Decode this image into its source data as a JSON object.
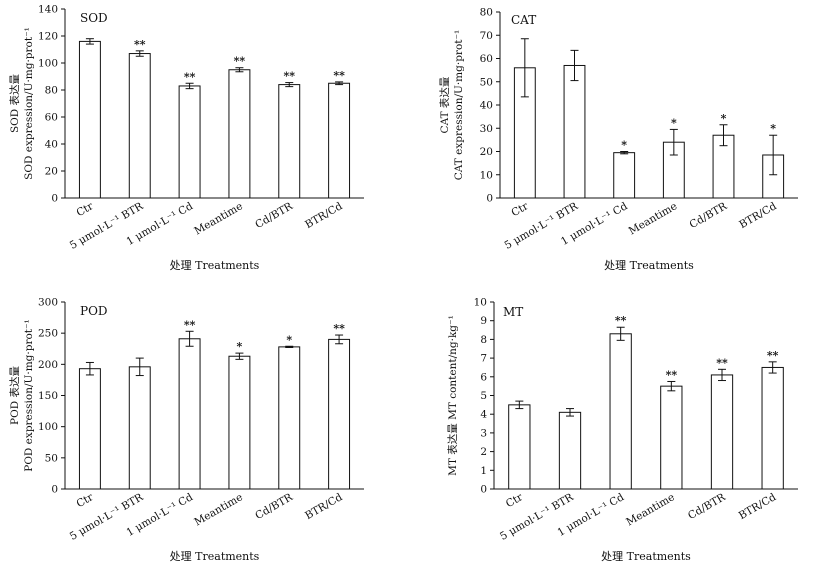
{
  "figure": {
    "categories": [
      "Ctr",
      "5 μmol·L⁻¹ BTR",
      "1 μmol·L⁻¹ Cd",
      "Meantime",
      "Cd/BTR",
      "BTR/Cd"
    ],
    "xlabel": "处理 Treatments"
  },
  "chart_data": [
    {
      "id": "sod",
      "type": "bar",
      "title": "SOD",
      "ylabel_lines": [
        "SOD 表达量",
        "SOD expression/U·mg·prot⁻¹"
      ],
      "xlabel": "处理 Treatments",
      "categories": [
        "Ctr",
        "5 μmol·L⁻¹ BTR",
        "1 μmol·L⁻¹ Cd",
        "Meantime",
        "Cd/BTR",
        "BTR/Cd"
      ],
      "values": [
        116,
        107,
        83,
        95,
        84,
        85
      ],
      "errors": [
        2,
        2,
        2,
        1.5,
        1.5,
        1
      ],
      "significance": [
        "",
        "**",
        "**",
        "**",
        "**",
        "**"
      ],
      "ylim": [
        0,
        140
      ],
      "yticks": [
        0,
        20,
        40,
        60,
        80,
        100,
        120,
        140
      ]
    },
    {
      "id": "cat",
      "type": "bar",
      "title": "CAT",
      "ylabel_lines": [
        "CAT 表达量",
        "CAT expression/U·mg·prot⁻¹"
      ],
      "xlabel": "处理 Treatments",
      "categories": [
        "Ctr",
        "5 μmol·L⁻¹ BTR",
        "1 μmol·L⁻¹ Cd",
        "Meantime",
        "Cd/BTR",
        "BTR/Cd"
      ],
      "values": [
        56,
        57,
        19.5,
        24,
        27,
        18.5
      ],
      "errors": [
        12.5,
        6.5,
        0.5,
        5.5,
        4.5,
        8.5
      ],
      "significance": [
        "",
        "",
        "*",
        "*",
        "*",
        "*"
      ],
      "ylim": [
        0,
        80
      ],
      "yticks": [
        0,
        10,
        20,
        30,
        40,
        50,
        60,
        70,
        80
      ]
    },
    {
      "id": "pod",
      "type": "bar",
      "title": "POD",
      "ylabel_lines": [
        "POD 表达量",
        "POD expression/U·mg·prot⁻¹"
      ],
      "xlabel": "处理 Treatments",
      "categories": [
        "Ctr",
        "5 μmol·L⁻¹ BTR",
        "1 μmol·L⁻¹ Cd",
        "Meantime",
        "Cd/BTR",
        "BTR/Cd"
      ],
      "values": [
        193,
        196,
        241,
        213,
        228,
        240
      ],
      "errors": [
        10,
        14,
        12,
        5,
        1,
        7
      ],
      "significance": [
        "",
        "",
        "**",
        "*",
        "*",
        "**"
      ],
      "ylim": [
        0,
        300
      ],
      "yticks": [
        0,
        50,
        100,
        150,
        200,
        250,
        300
      ]
    },
    {
      "id": "mt",
      "type": "bar",
      "title": "MT",
      "ylabel_lines": [
        "MT 表达量 MT content/ng·kg⁻¹"
      ],
      "xlabel": "处理 Treatments",
      "categories": [
        "Ctr",
        "5 μmol·L⁻¹ BTR",
        "1 μmol·L⁻¹ Cd",
        "Meantime",
        "Cd/BTR",
        "BTR/Cd"
      ],
      "values": [
        4.5,
        4.1,
        8.3,
        5.5,
        6.1,
        6.5
      ],
      "errors": [
        0.2,
        0.2,
        0.35,
        0.25,
        0.3,
        0.3
      ],
      "significance": [
        "",
        "",
        "**",
        "**",
        "**",
        "**"
      ],
      "ylim": [
        0,
        10
      ],
      "yticks": [
        0,
        1,
        2,
        3,
        4,
        5,
        6,
        7,
        8,
        9,
        10
      ]
    }
  ]
}
